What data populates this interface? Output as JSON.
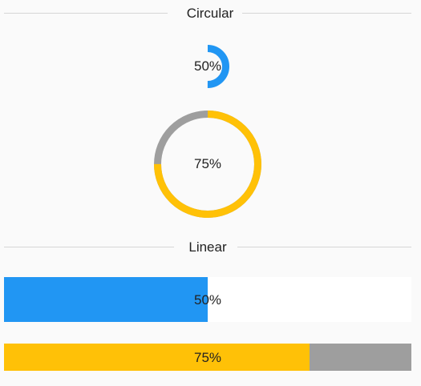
{
  "sections": {
    "circular_title": "Circular",
    "linear_title": "Linear"
  },
  "circular": [
    {
      "value": 0.5,
      "label": "50%",
      "color": "#2196f3",
      "track_color": "#fafafa"
    },
    {
      "value": 0.75,
      "label": "75%",
      "color": "#ffc107",
      "track_color": "#9e9e9e"
    }
  ],
  "linear": [
    {
      "value": 0.5,
      "label": "50%",
      "color": "#2196f3",
      "track_color": "#ffffff"
    },
    {
      "value": 0.75,
      "label": "75%",
      "color": "#ffc107",
      "track_color": "#9e9e9e"
    }
  ]
}
